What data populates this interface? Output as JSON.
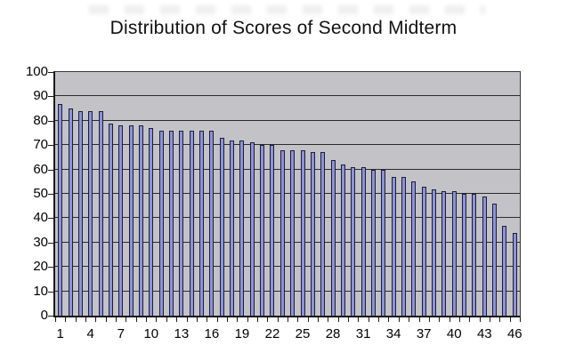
{
  "page": {
    "background": "#ffffff"
  },
  "chart_data": {
    "type": "bar",
    "title": "Distribution of Scores of Second Midterm",
    "categories": [
      1,
      2,
      3,
      4,
      5,
      6,
      7,
      8,
      9,
      10,
      11,
      12,
      13,
      14,
      15,
      16,
      17,
      18,
      19,
      20,
      21,
      22,
      23,
      24,
      25,
      26,
      27,
      28,
      29,
      30,
      31,
      32,
      33,
      34,
      35,
      36,
      37,
      38,
      39,
      40,
      41,
      42,
      43,
      44,
      45,
      46
    ],
    "values": [
      87,
      85,
      84,
      84,
      84,
      79,
      78,
      78,
      78,
      77,
      76,
      76,
      76,
      76,
      76,
      76,
      73,
      72,
      72,
      71,
      70,
      70,
      68,
      68,
      68,
      67,
      67,
      64,
      62,
      61,
      61,
      60,
      60,
      57,
      57,
      55,
      53,
      52,
      51,
      51,
      50,
      50,
      49,
      46,
      37,
      34
    ],
    "xlabel": "",
    "ylabel": "",
    "ylim": [
      0,
      100
    ],
    "ytick_interval": 10,
    "ytick_labels": [
      "0",
      "10",
      "20",
      "30",
      "40",
      "50",
      "60",
      "70",
      "80",
      "90",
      "100"
    ],
    "xtick_labels": [
      "1",
      "4",
      "7",
      "10",
      "13",
      "16",
      "19",
      "22",
      "25",
      "28",
      "31",
      "34",
      "37",
      "40",
      "43",
      "46"
    ],
    "xtick_label_positions": [
      1,
      4,
      7,
      10,
      13,
      16,
      19,
      22,
      25,
      28,
      31,
      34,
      37,
      40,
      43,
      46
    ],
    "grid": true,
    "legend": false,
    "colors": {
      "plot_bg": "#c3c3c7",
      "bar_fill": "#8d93d8",
      "bar_border": "#1c1c38",
      "gridline": "#2b2b2b",
      "axis": "#1a1a1a",
      "text": "#000000",
      "page_bg": "#ffffff"
    }
  }
}
